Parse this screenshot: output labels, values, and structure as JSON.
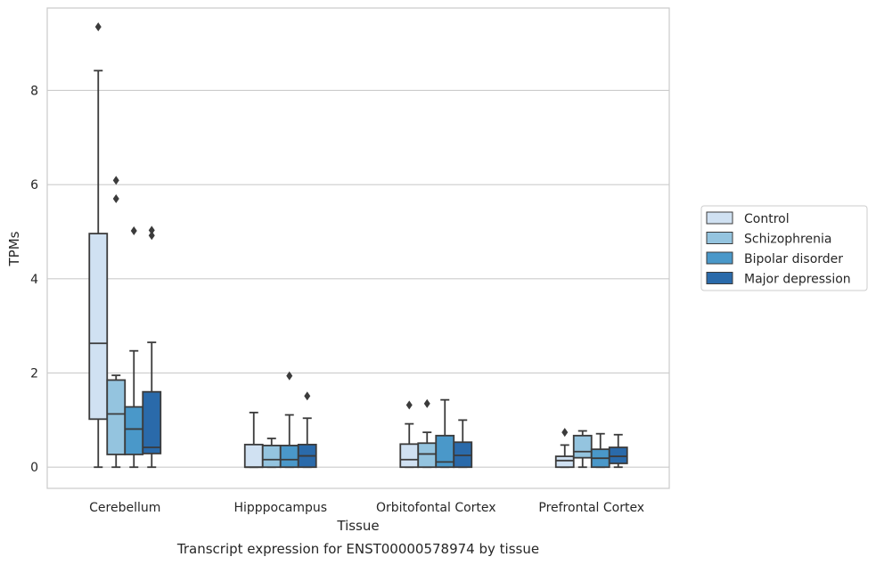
{
  "chart_data": {
    "type": "box",
    "caption": "Transcript expression for ENST00000578974 by tissue",
    "xlabel": "Tissue",
    "ylabel": "TPMs",
    "ylim": [
      -0.45,
      9.75
    ],
    "yticks": [
      0,
      2,
      4,
      6,
      8
    ],
    "grid": "horizontal",
    "legend_position": "right",
    "categories": [
      "Cerebellum",
      "Hipppocampus",
      "Orbitofontal Cortex",
      "Prefrontal Cortex"
    ],
    "series": [
      {
        "name": "Control",
        "color": "#d0e1f2",
        "boxes": [
          {
            "whisker_low": 0,
            "q1": 1.02,
            "median": 2.63,
            "q3": 4.96,
            "whisker_high": 8.42,
            "outliers": [
              9.35
            ]
          },
          {
            "whisker_low": 0,
            "q1": 0,
            "median": 0,
            "q3": 0.48,
            "whisker_high": 1.16,
            "outliers": []
          },
          {
            "whisker_low": 0,
            "q1": 0,
            "median": 0.16,
            "q3": 0.49,
            "whisker_high": 0.92,
            "outliers": [
              1.32
            ]
          },
          {
            "whisker_low": 0,
            "q1": 0,
            "median": 0.14,
            "q3": 0.23,
            "whisker_high": 0.47,
            "outliers": [
              0.74
            ]
          }
        ]
      },
      {
        "name": "Schizophrenia",
        "color": "#94c4df",
        "boxes": [
          {
            "whisker_low": 0,
            "q1": 0.27,
            "median": 1.13,
            "q3": 1.85,
            "whisker_high": 1.95,
            "outliers": [
              5.7,
              6.09
            ]
          },
          {
            "whisker_low": 0,
            "q1": 0,
            "median": 0.16,
            "q3": 0.46,
            "whisker_high": 0.61,
            "outliers": []
          },
          {
            "whisker_low": 0,
            "q1": 0,
            "median": 0.28,
            "q3": 0.51,
            "whisker_high": 0.74,
            "outliers": [
              1.35
            ]
          },
          {
            "whisker_low": 0,
            "q1": 0.2,
            "median": 0.33,
            "q3": 0.67,
            "whisker_high": 0.77,
            "outliers": []
          }
        ]
      },
      {
        "name": "Bipolar disorder",
        "color": "#4a98c9",
        "boxes": [
          {
            "whisker_low": 0,
            "q1": 0.27,
            "median": 0.81,
            "q3": 1.28,
            "whisker_high": 2.47,
            "outliers": [
              5.02
            ]
          },
          {
            "whisker_low": 0,
            "q1": 0,
            "median": 0.16,
            "q3": 0.46,
            "whisker_high": 1.11,
            "outliers": [
              1.94
            ]
          },
          {
            "whisker_low": 0,
            "q1": 0,
            "median": 0.11,
            "q3": 0.67,
            "whisker_high": 1.43,
            "outliers": []
          },
          {
            "whisker_low": 0,
            "q1": 0,
            "median": 0.19,
            "q3": 0.38,
            "whisker_high": 0.71,
            "outliers": []
          }
        ]
      },
      {
        "name": "Major depression",
        "color": "#2a6aaa",
        "boxes": [
          {
            "whisker_low": 0,
            "q1": 0.29,
            "median": 0.42,
            "q3": 1.6,
            "whisker_high": 2.65,
            "outliers": [
              4.92,
              5.03
            ]
          },
          {
            "whisker_low": 0,
            "q1": 0,
            "median": 0.24,
            "q3": 0.48,
            "whisker_high": 1.04,
            "outliers": [
              1.51
            ]
          },
          {
            "whisker_low": 0,
            "q1": 0,
            "median": 0.25,
            "q3": 0.53,
            "whisker_high": 1.0,
            "outliers": []
          },
          {
            "whisker_low": 0,
            "q1": 0.08,
            "median": 0.23,
            "q3": 0.42,
            "whisker_high": 0.69,
            "outliers": []
          }
        ]
      }
    ]
  }
}
